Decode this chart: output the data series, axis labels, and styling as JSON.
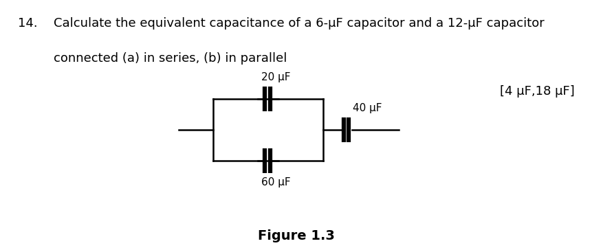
{
  "title_num": "14.",
  "title_text_line1": "Calculate the equivalent capacitance of a 6-μF capacitor and a 12-μF capacitor",
  "title_text_line2": "connected (a) in series, (b) in parallel",
  "answer": "[4 μF,18 μF]",
  "figure_label": "Figure 1.3",
  "cap1_label": "20 μF",
  "cap2_label": "60 μF",
  "cap3_label": "40 μF",
  "background_color": "#ffffff",
  "line_color": "#000000",
  "text_color": "#000000",
  "font_size_body": 13,
  "font_size_answer": 13,
  "font_size_fig": 14,
  "font_size_cap": 11
}
